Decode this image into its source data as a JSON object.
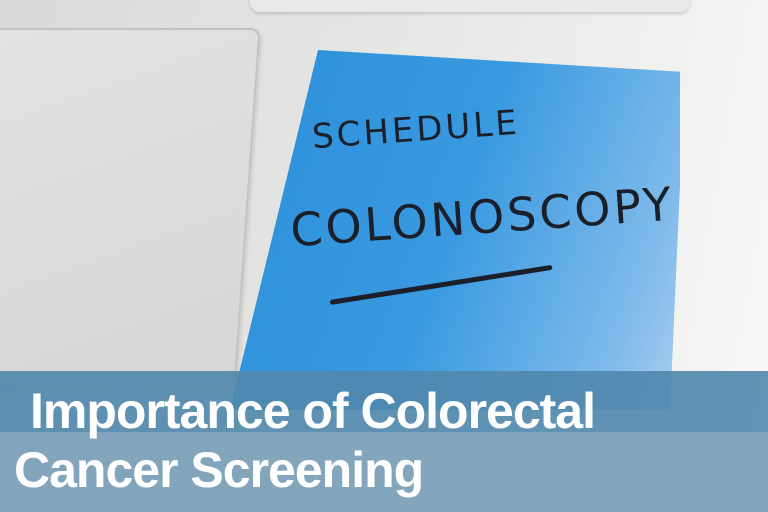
{
  "photo": {
    "sticky_note_text": [
      "SCHEDULE",
      "COLONOSCOPY"
    ],
    "note_color": "#3a9ae0"
  },
  "title": {
    "line1": "Importance of Colorectal",
    "line2": "Cancer Screening",
    "band_colors": [
      "#5087ac",
      "#80a3ba"
    ]
  }
}
